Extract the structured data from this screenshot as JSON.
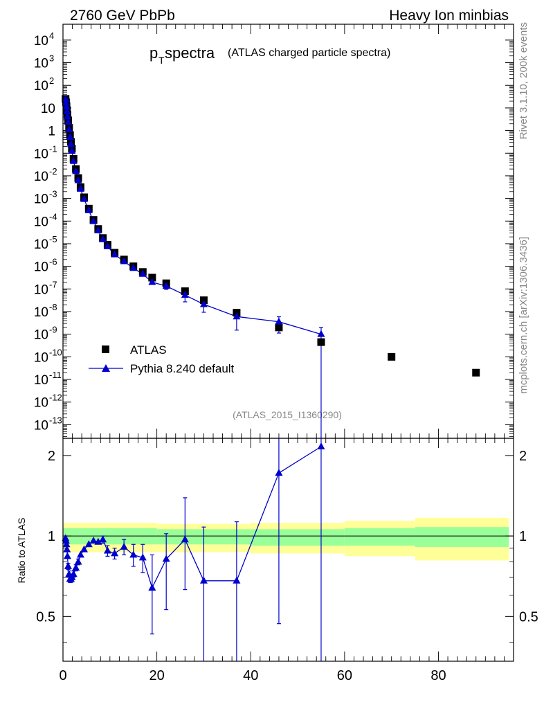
{
  "header": {
    "left": "2760 GeV PbPb",
    "right": "Heavy Ion minbias"
  },
  "title": {
    "main": "p",
    "sub": "T",
    "rest": " spectra",
    "detail": "(ATLAS charged particle spectra)"
  },
  "side_text": {
    "rivet": "Rivet 3.1.10,  200k events",
    "mcplots": "mcplots.cern.ch [arXiv:1306.3436]"
  },
  "analysis_id": "(ATLAS_2015_I1360290)",
  "legend": {
    "data_label": "ATLAS",
    "mc_label": "Pythia 8.240 default"
  },
  "ratio_ylabel": "Ratio to ATLAS",
  "colors": {
    "data": "#000000",
    "mc": "#0000cc",
    "band_inner": "#99ff99",
    "band_outer": "#ffff99",
    "grey_text": "#888888"
  },
  "chart_data": [
    {
      "type": "scatter",
      "yscale": "log",
      "xlim": [
        0,
        96
      ],
      "ylim_exp": [
        -13.6,
        4.7
      ],
      "y_ticks": [
        {
          "base": "10",
          "exp": "4"
        },
        {
          "base": "10",
          "exp": "3"
        },
        {
          "base": "10",
          "exp": "2"
        },
        {
          "base": "10",
          "exp": ""
        },
        {
          "base": "1",
          "exp": ""
        },
        {
          "base": "10",
          "exp": "-1"
        },
        {
          "base": "10",
          "exp": "-2"
        },
        {
          "base": "10",
          "exp": "-3"
        },
        {
          "base": "10",
          "exp": "-4"
        },
        {
          "base": "10",
          "exp": "-5"
        },
        {
          "base": "10",
          "exp": "-6"
        },
        {
          "base": "10",
          "exp": "-7"
        },
        {
          "base": "10",
          "exp": "-8"
        },
        {
          "base": "10",
          "exp": "-9"
        },
        {
          "base": "10",
          "exp": "-10"
        },
        {
          "base": "10",
          "exp": "-11"
        },
        {
          "base": "10",
          "exp": "-12"
        },
        {
          "base": "10",
          "exp": "-13"
        }
      ],
      "series": [
        {
          "name": "ATLAS",
          "marker": "square",
          "x": [
            0.55,
            0.65,
            0.75,
            0.85,
            0.95,
            1.1,
            1.3,
            1.5,
            1.7,
            1.9,
            2.25,
            2.75,
            3.25,
            3.75,
            4.5,
            5.5,
            6.5,
            7.5,
            8.5,
            9.5,
            11,
            13,
            15,
            17,
            19,
            22,
            26,
            30,
            37,
            46,
            55,
            70,
            88
          ],
          "log10_y": [
            1.4,
            1.25,
            1.08,
            0.9,
            0.7,
            0.45,
            0.12,
            -0.2,
            -0.5,
            -0.8,
            -1.25,
            -1.7,
            -2.1,
            -2.5,
            -2.95,
            -3.45,
            -3.95,
            -4.35,
            -4.75,
            -5.05,
            -5.4,
            -5.7,
            -6.0,
            -6.25,
            -6.5,
            -6.75,
            -7.1,
            -7.5,
            -8.05,
            -8.7,
            -9.35,
            -10.0,
            -10.7
          ],
          "note": "y is drawn as 10^log10_y"
        },
        {
          "name": "Pythia 8.240 default",
          "marker": "triangle",
          "line": true,
          "x": [
            0.55,
            0.65,
            0.75,
            0.85,
            0.95,
            1.1,
            1.3,
            1.5,
            1.7,
            1.9,
            2.25,
            2.75,
            3.25,
            3.75,
            4.5,
            5.5,
            6.5,
            7.5,
            8.5,
            9.5,
            11,
            13,
            15,
            17,
            19,
            22,
            26,
            30,
            37,
            46,
            55
          ],
          "log10_y": [
            1.39,
            1.23,
            1.05,
            0.85,
            0.63,
            0.37,
            0.04,
            -0.29,
            -0.6,
            -0.9,
            -1.35,
            -1.8,
            -2.2,
            -2.58,
            -3.03,
            -3.53,
            -4.01,
            -4.42,
            -4.81,
            -5.12,
            -5.48,
            -5.78,
            -6.08,
            -6.34,
            -6.7,
            -6.87,
            -7.27,
            -7.68,
            -8.22,
            -8.45,
            -9.0
          ],
          "log10_err_lo": [
            0.02,
            0.02,
            0.02,
            0.02,
            0.02,
            0.02,
            0.02,
            0.02,
            0.02,
            0.02,
            0.03,
            0.03,
            0.03,
            0.03,
            0.05,
            0.05,
            0.05,
            0.05,
            0.05,
            0.05,
            0.06,
            0.07,
            0.08,
            0.1,
            0.1,
            0.15,
            0.3,
            0.35,
            0.6,
            0.5,
            6.0
          ],
          "log10_err_hi": [
            0.02,
            0.02,
            0.02,
            0.02,
            0.02,
            0.02,
            0.02,
            0.02,
            0.02,
            0.02,
            0.03,
            0.03,
            0.03,
            0.03,
            0.05,
            0.05,
            0.05,
            0.05,
            0.05,
            0.05,
            0.06,
            0.07,
            0.08,
            0.1,
            0.1,
            0.12,
            0.2,
            0.2,
            0.25,
            0.22,
            0.3
          ]
        }
      ]
    },
    {
      "type": "line",
      "ylabel": "Ratio to ATLAS",
      "xlim": [
        0,
        96
      ],
      "ylim": [
        0.34,
        2.32
      ],
      "xticks": [
        "0",
        "20",
        "40",
        "60",
        "80"
      ],
      "yticks": [
        "0.5",
        "1",
        "2"
      ],
      "bands": [
        {
          "x0": 0,
          "x1": 20,
          "inner": [
            0.93,
            1.07
          ],
          "outer": [
            0.87,
            1.12
          ]
        },
        {
          "x0": 20,
          "x1": 40,
          "inner": [
            0.93,
            1.06
          ],
          "outer": [
            0.87,
            1.11
          ]
        },
        {
          "x0": 40,
          "x1": 60,
          "inner": [
            0.92,
            1.06
          ],
          "outer": [
            0.86,
            1.12
          ]
        },
        {
          "x0": 60,
          "x1": 75,
          "inner": [
            0.92,
            1.07
          ],
          "outer": [
            0.84,
            1.14
          ]
        },
        {
          "x0": 75,
          "x1": 95,
          "inner": [
            0.91,
            1.08
          ],
          "outer": [
            0.81,
            1.17
          ]
        }
      ],
      "series": [
        {
          "name": "Pythia 8.240 default",
          "x": [
            0.55,
            0.65,
            0.75,
            0.85,
            0.95,
            1.1,
            1.3,
            1.5,
            1.7,
            1.9,
            2.25,
            2.75,
            3.25,
            3.75,
            4.5,
            5.5,
            6.5,
            7.5,
            8.5,
            9.5,
            11,
            13,
            15,
            17,
            19,
            22,
            26,
            30,
            37,
            46,
            55
          ],
          "y": [
            0.98,
            0.96,
            0.93,
            0.89,
            0.84,
            0.77,
            0.72,
            0.69,
            0.69,
            0.7,
            0.72,
            0.76,
            0.8,
            0.85,
            0.89,
            0.93,
            0.96,
            0.95,
            0.97,
            0.88,
            0.86,
            0.91,
            0.85,
            0.83,
            0.64,
            0.82,
            0.97,
            0.68,
            0.68,
            1.72,
            2.16
          ],
          "err_lo": [
            0.02,
            0.02,
            0.02,
            0.02,
            0.02,
            0.02,
            0.02,
            0.02,
            0.02,
            0.02,
            0.02,
            0.02,
            0.02,
            0.02,
            0.02,
            0.02,
            0.02,
            0.02,
            0.03,
            0.04,
            0.04,
            0.06,
            0.08,
            0.1,
            0.21,
            0.29,
            0.34,
            0.34,
            0.34,
            1.25,
            1.9
          ],
          "err_hi": [
            0.02,
            0.02,
            0.02,
            0.02,
            0.02,
            0.02,
            0.02,
            0.02,
            0.02,
            0.02,
            0.02,
            0.02,
            0.02,
            0.02,
            0.02,
            0.02,
            0.02,
            0.02,
            0.03,
            0.04,
            0.04,
            0.06,
            0.08,
            0.1,
            0.21,
            0.2,
            0.42,
            0.4,
            0.45,
            0.7,
            0.4
          ]
        }
      ]
    }
  ]
}
